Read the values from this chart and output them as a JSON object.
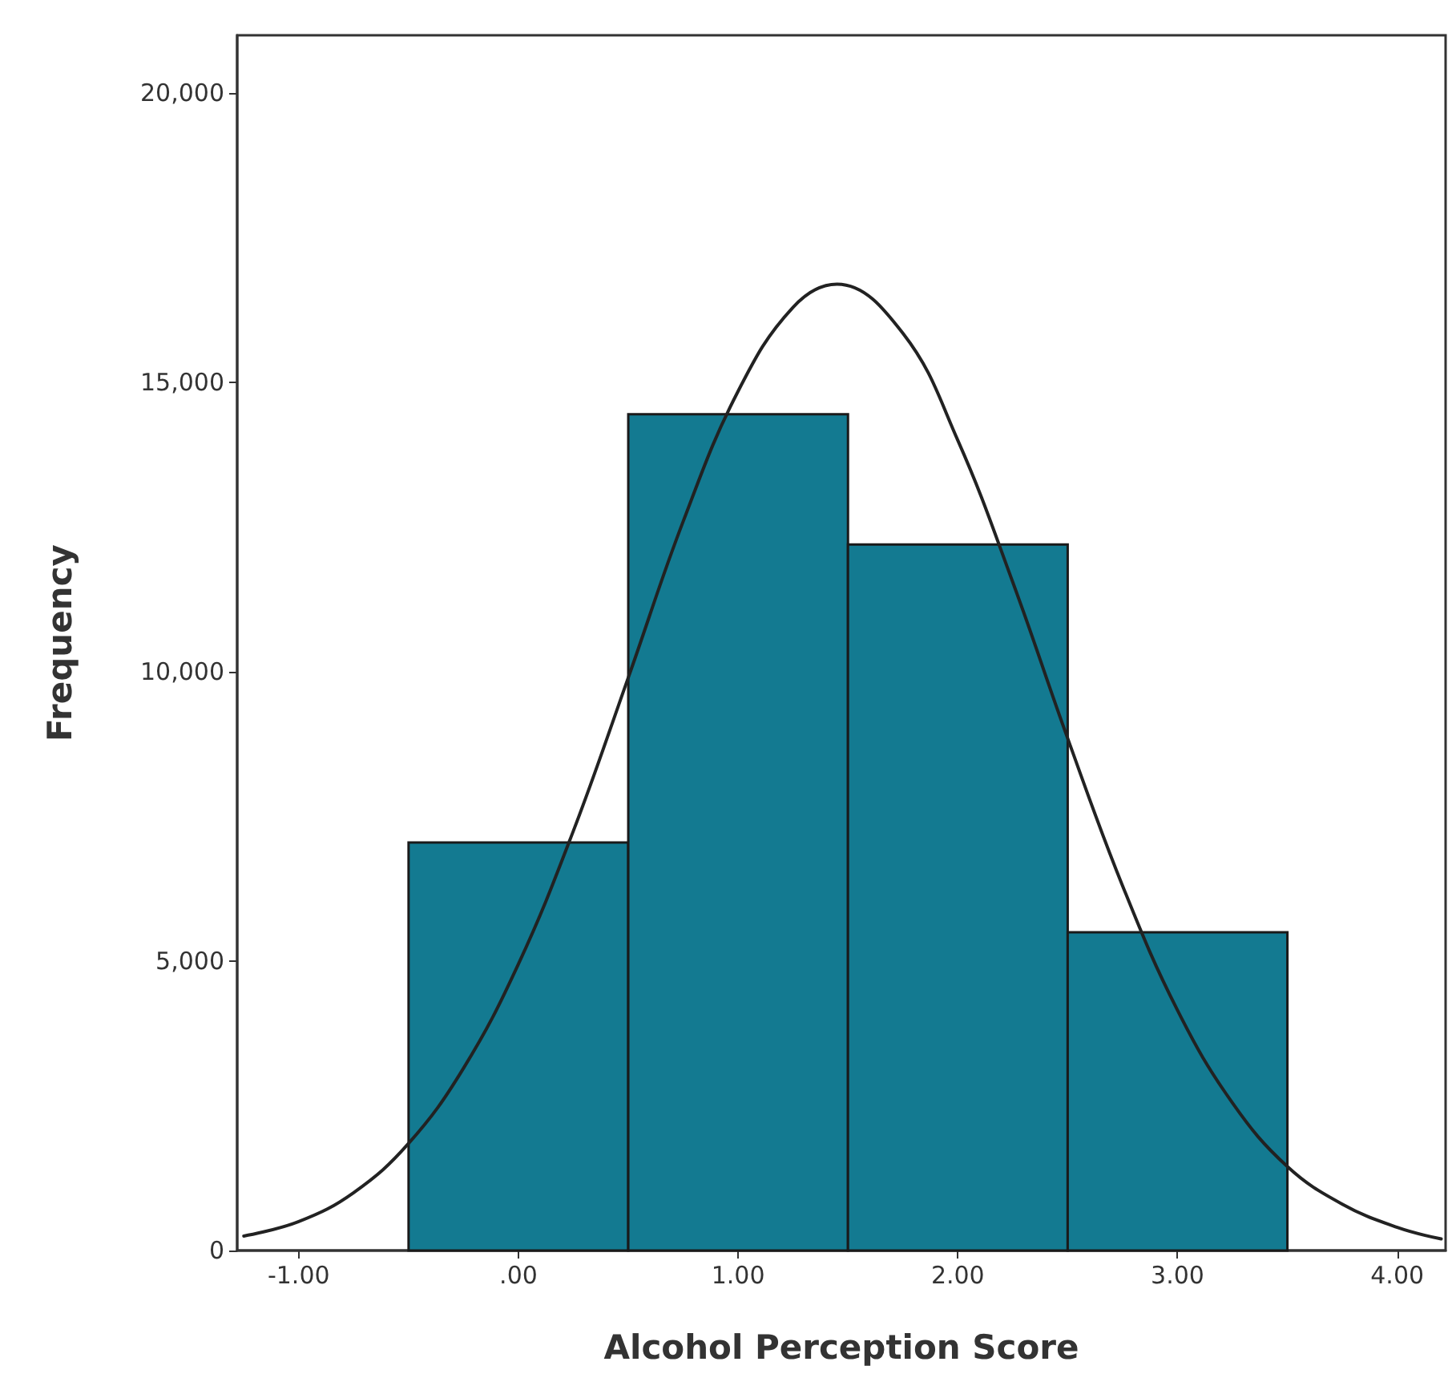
{
  "chart_data": {
    "type": "histogram",
    "xlabel": "Alcohol Perception Score",
    "ylabel": "Frequency",
    "bins": [
      -0.5,
      0.5,
      1.5,
      2.5,
      3.5
    ],
    "values": [
      7050,
      14450,
      12200,
      5500
    ],
    "color": "#137a91",
    "series": [
      {
        "type": "line",
        "color": "#222222",
        "x": [
          -1.25,
          -1.0,
          -0.75,
          -0.5,
          -0.25,
          0,
          0.25,
          0.5,
          0.75,
          1.0,
          1.25,
          1.45,
          1.75,
          2.0,
          2.25,
          2.5,
          2.75,
          3.0,
          3.25,
          3.5,
          3.75,
          4.0,
          4.2
        ],
        "values": [
          250,
          500,
          1000,
          1850,
          3150,
          4950,
          7250,
          9900,
          12600,
          14850,
          16300,
          16700,
          15850,
          14000,
          11550,
          8850,
          6300,
          4150,
          2550,
          1450,
          800,
          400,
          200
        ]
      }
    ],
    "xlim": [
      -1.28,
      4.22
    ],
    "xticks": [
      {
        "value": -1,
        "label": "-1.00"
      },
      {
        "value": 0,
        "label": ".00"
      },
      {
        "value": 1,
        "label": "1.00"
      },
      {
        "value": 2,
        "label": "2.00"
      },
      {
        "value": 3,
        "label": "3.00"
      },
      {
        "value": 4,
        "label": "4.00"
      }
    ],
    "ylim": [
      0,
      21000
    ],
    "yticks": [
      0,
      {
        "value": 5000,
        "label": "5,000"
      },
      {
        "value": 10000,
        "label": "10,000"
      },
      {
        "value": 15000,
        "label": "15,000"
      },
      {
        "value": 20000,
        "label": "20,000"
      }
    ],
    "grid": false,
    "marker": "none",
    "line_style": "solid"
  }
}
